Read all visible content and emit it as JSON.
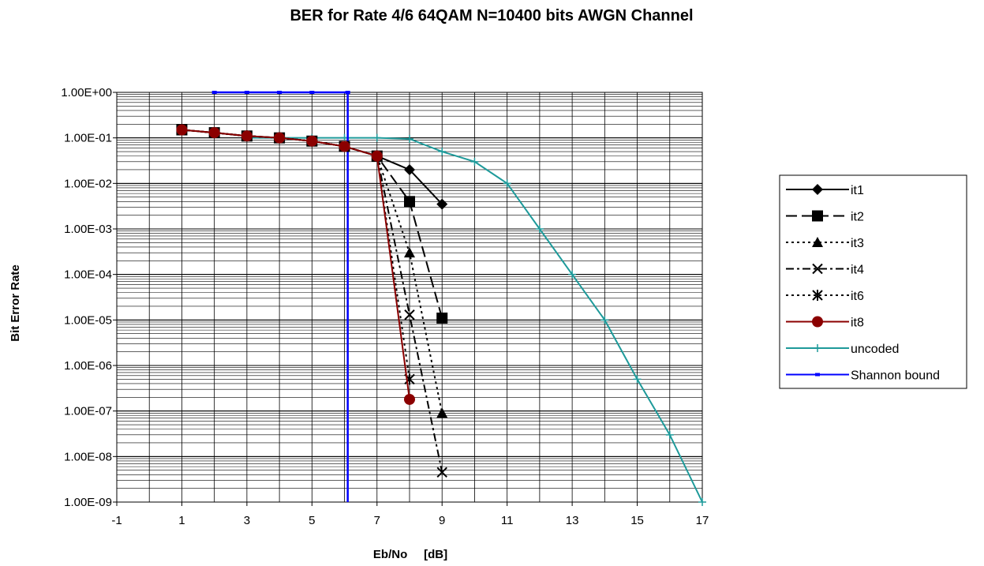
{
  "chart_data": {
    "type": "line",
    "title": "BER for Rate 4/6 64QAM N=10400 bits  AWGN Channel",
    "xlabel": "Eb/No     [dB]",
    "ylabel": "Bit Error Rate",
    "xlim": [
      -1,
      17
    ],
    "ylim": [
      1e-09,
      1
    ],
    "y_scale": "log",
    "x_tick_labels": [
      "-1",
      "1",
      "3",
      "5",
      "7",
      "9",
      "11",
      "13",
      "15",
      "17"
    ],
    "x_tick_values": [
      -1,
      1,
      3,
      5,
      7,
      9,
      11,
      13,
      15,
      17
    ],
    "y_tick_labels": [
      "1.00E-09",
      "1.00E-08",
      "1.00E-07",
      "1.00E-06",
      "1.00E-05",
      "1.00E-04",
      "1.00E-03",
      "1.00E-02",
      "1.00E-01",
      "1.00E+00"
    ],
    "y_tick_values": [
      1e-09,
      1e-08,
      1e-07,
      1e-06,
      1e-05,
      0.0001,
      0.001,
      0.01,
      0.1,
      1
    ],
    "grid": true,
    "legend_position": "right",
    "series": [
      {
        "name": "it1",
        "color": "#000000",
        "dash": "solid",
        "marker": "diamond",
        "x": [
          1,
          2,
          3,
          4,
          5,
          6,
          7,
          8,
          9
        ],
        "y": [
          0.15,
          0.13,
          0.11,
          0.1,
          0.085,
          0.065,
          0.04,
          0.02,
          0.0035
        ]
      },
      {
        "name": "it2",
        "color": "#000000",
        "dash": "longdash",
        "marker": "square",
        "x": [
          1,
          2,
          3,
          4,
          5,
          6,
          7,
          8,
          9
        ],
        "y": [
          0.15,
          0.13,
          0.11,
          0.1,
          0.085,
          0.065,
          0.04,
          0.004,
          1.1e-05
        ]
      },
      {
        "name": "it3",
        "color": "#000000",
        "dash": "dotted",
        "marker": "triangle",
        "x": [
          1,
          2,
          3,
          4,
          5,
          6,
          7,
          8,
          9
        ],
        "y": [
          0.15,
          0.13,
          0.11,
          0.1,
          0.085,
          0.065,
          0.04,
          0.0003,
          9e-08
        ]
      },
      {
        "name": "it4",
        "color": "#000000",
        "dash": "dashdot",
        "marker": "x",
        "x": [
          1,
          2,
          3,
          4,
          5,
          6,
          7,
          8,
          9
        ],
        "y": [
          0.15,
          0.13,
          0.11,
          0.1,
          0.085,
          0.065,
          0.04,
          1.3e-05,
          4.5e-09
        ]
      },
      {
        "name": "it6",
        "color": "#000000",
        "dash": "dotted",
        "marker": "asterisk",
        "x": [
          1,
          2,
          3,
          4,
          5,
          6,
          7,
          8
        ],
        "y": [
          0.15,
          0.13,
          0.11,
          0.1,
          0.085,
          0.065,
          0.04,
          5e-07
        ]
      },
      {
        "name": "it8",
        "color": "#8b0000",
        "dash": "solid",
        "marker": "circle",
        "x": [
          1,
          2,
          3,
          4,
          5,
          6,
          7,
          8
        ],
        "y": [
          0.15,
          0.13,
          0.11,
          0.1,
          0.085,
          0.065,
          0.04,
          1.8e-07
        ]
      },
      {
        "name": "uncoded",
        "color": "#1e9a9a",
        "dash": "solid",
        "marker": "plus",
        "x": [
          3,
          4,
          5,
          6,
          7,
          8,
          9,
          10,
          11,
          12,
          13,
          14,
          15,
          16,
          17
        ],
        "y": [
          0.1,
          0.1,
          0.1,
          0.1,
          0.1,
          0.095,
          0.05,
          0.03,
          0.01,
          0.001,
          0.0001,
          1e-05,
          5e-07,
          3e-08,
          1e-09
        ]
      },
      {
        "name": "Shannon bound",
        "color": "#0000ff",
        "dash": "solid",
        "marker": "smallsquare",
        "x": [
          2,
          3,
          4,
          5,
          6.1,
          6.1
        ],
        "y": [
          1,
          1,
          1,
          1,
          1,
          1e-09
        ]
      }
    ]
  }
}
